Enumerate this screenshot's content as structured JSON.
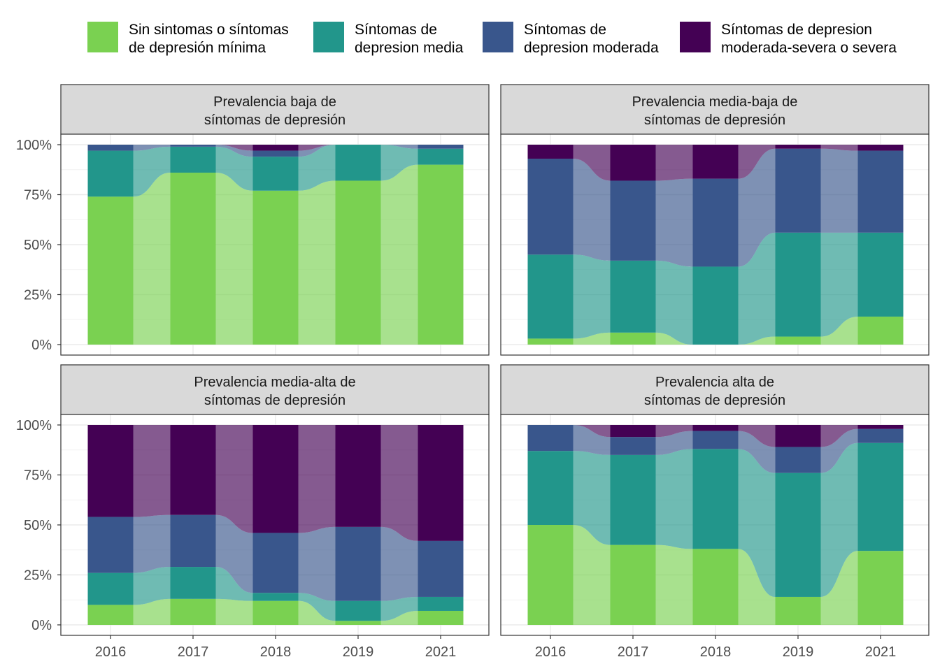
{
  "chart_data": {
    "type": "alluvial",
    "x": [
      "2016",
      "2017",
      "2018",
      "2019",
      "2021"
    ],
    "y_ticks": [
      "0%",
      "25%",
      "50%",
      "75%",
      "100%"
    ],
    "ylim": [
      0,
      1
    ],
    "grid": true,
    "legend_position": "top",
    "categories": [
      {
        "key": "c1",
        "lines": [
          "Sin sintomas o síntomas",
          "de depresión mínima"
        ],
        "color": "#7ad151"
      },
      {
        "key": "c2",
        "lines": [
          "Síntomas de",
          "depresion media"
        ],
        "color": "#22968b"
      },
      {
        "key": "c3",
        "lines": [
          "Síntomas de",
          "depresion moderada"
        ],
        "color": "#39568c"
      },
      {
        "key": "c4",
        "lines": [
          "Síntomas de depresion",
          "moderada-severa o severa"
        ],
        "color": "#440154"
      }
    ],
    "panels": [
      {
        "title_lines": [
          "Prevalencia baja de",
          "síntomas de depresión"
        ],
        "stacks": [
          [
            0.74,
            0.23,
            0.03,
            0.0
          ],
          [
            0.86,
            0.13,
            0.01,
            0.0
          ],
          [
            0.77,
            0.17,
            0.03,
            0.03
          ],
          [
            0.82,
            0.18,
            0.0,
            0.0
          ],
          [
            0.9,
            0.08,
            0.02,
            0.0
          ]
        ]
      },
      {
        "title_lines": [
          "Prevalencia media-baja de",
          "síntomas de depresión"
        ],
        "stacks": [
          [
            0.03,
            0.42,
            0.48,
            0.07
          ],
          [
            0.06,
            0.36,
            0.4,
            0.18
          ],
          [
            0.0,
            0.39,
            0.44,
            0.17
          ],
          [
            0.04,
            0.52,
            0.42,
            0.02
          ],
          [
            0.14,
            0.42,
            0.41,
            0.03
          ]
        ]
      },
      {
        "title_lines": [
          "Prevalencia media-alta de",
          "síntomas de depresión"
        ],
        "stacks": [
          [
            0.1,
            0.16,
            0.28,
            0.46
          ],
          [
            0.13,
            0.16,
            0.26,
            0.45
          ],
          [
            0.12,
            0.04,
            0.3,
            0.54
          ],
          [
            0.02,
            0.1,
            0.37,
            0.51
          ],
          [
            0.07,
            0.07,
            0.28,
            0.58
          ]
        ]
      },
      {
        "title_lines": [
          "Prevalencia alta de",
          "síntomas de depresión"
        ],
        "stacks": [
          [
            0.5,
            0.37,
            0.13,
            0.0
          ],
          [
            0.4,
            0.45,
            0.09,
            0.06
          ],
          [
            0.38,
            0.5,
            0.09,
            0.03
          ],
          [
            0.14,
            0.62,
            0.13,
            0.11
          ],
          [
            0.37,
            0.54,
            0.07,
            0.02
          ]
        ]
      }
    ]
  }
}
